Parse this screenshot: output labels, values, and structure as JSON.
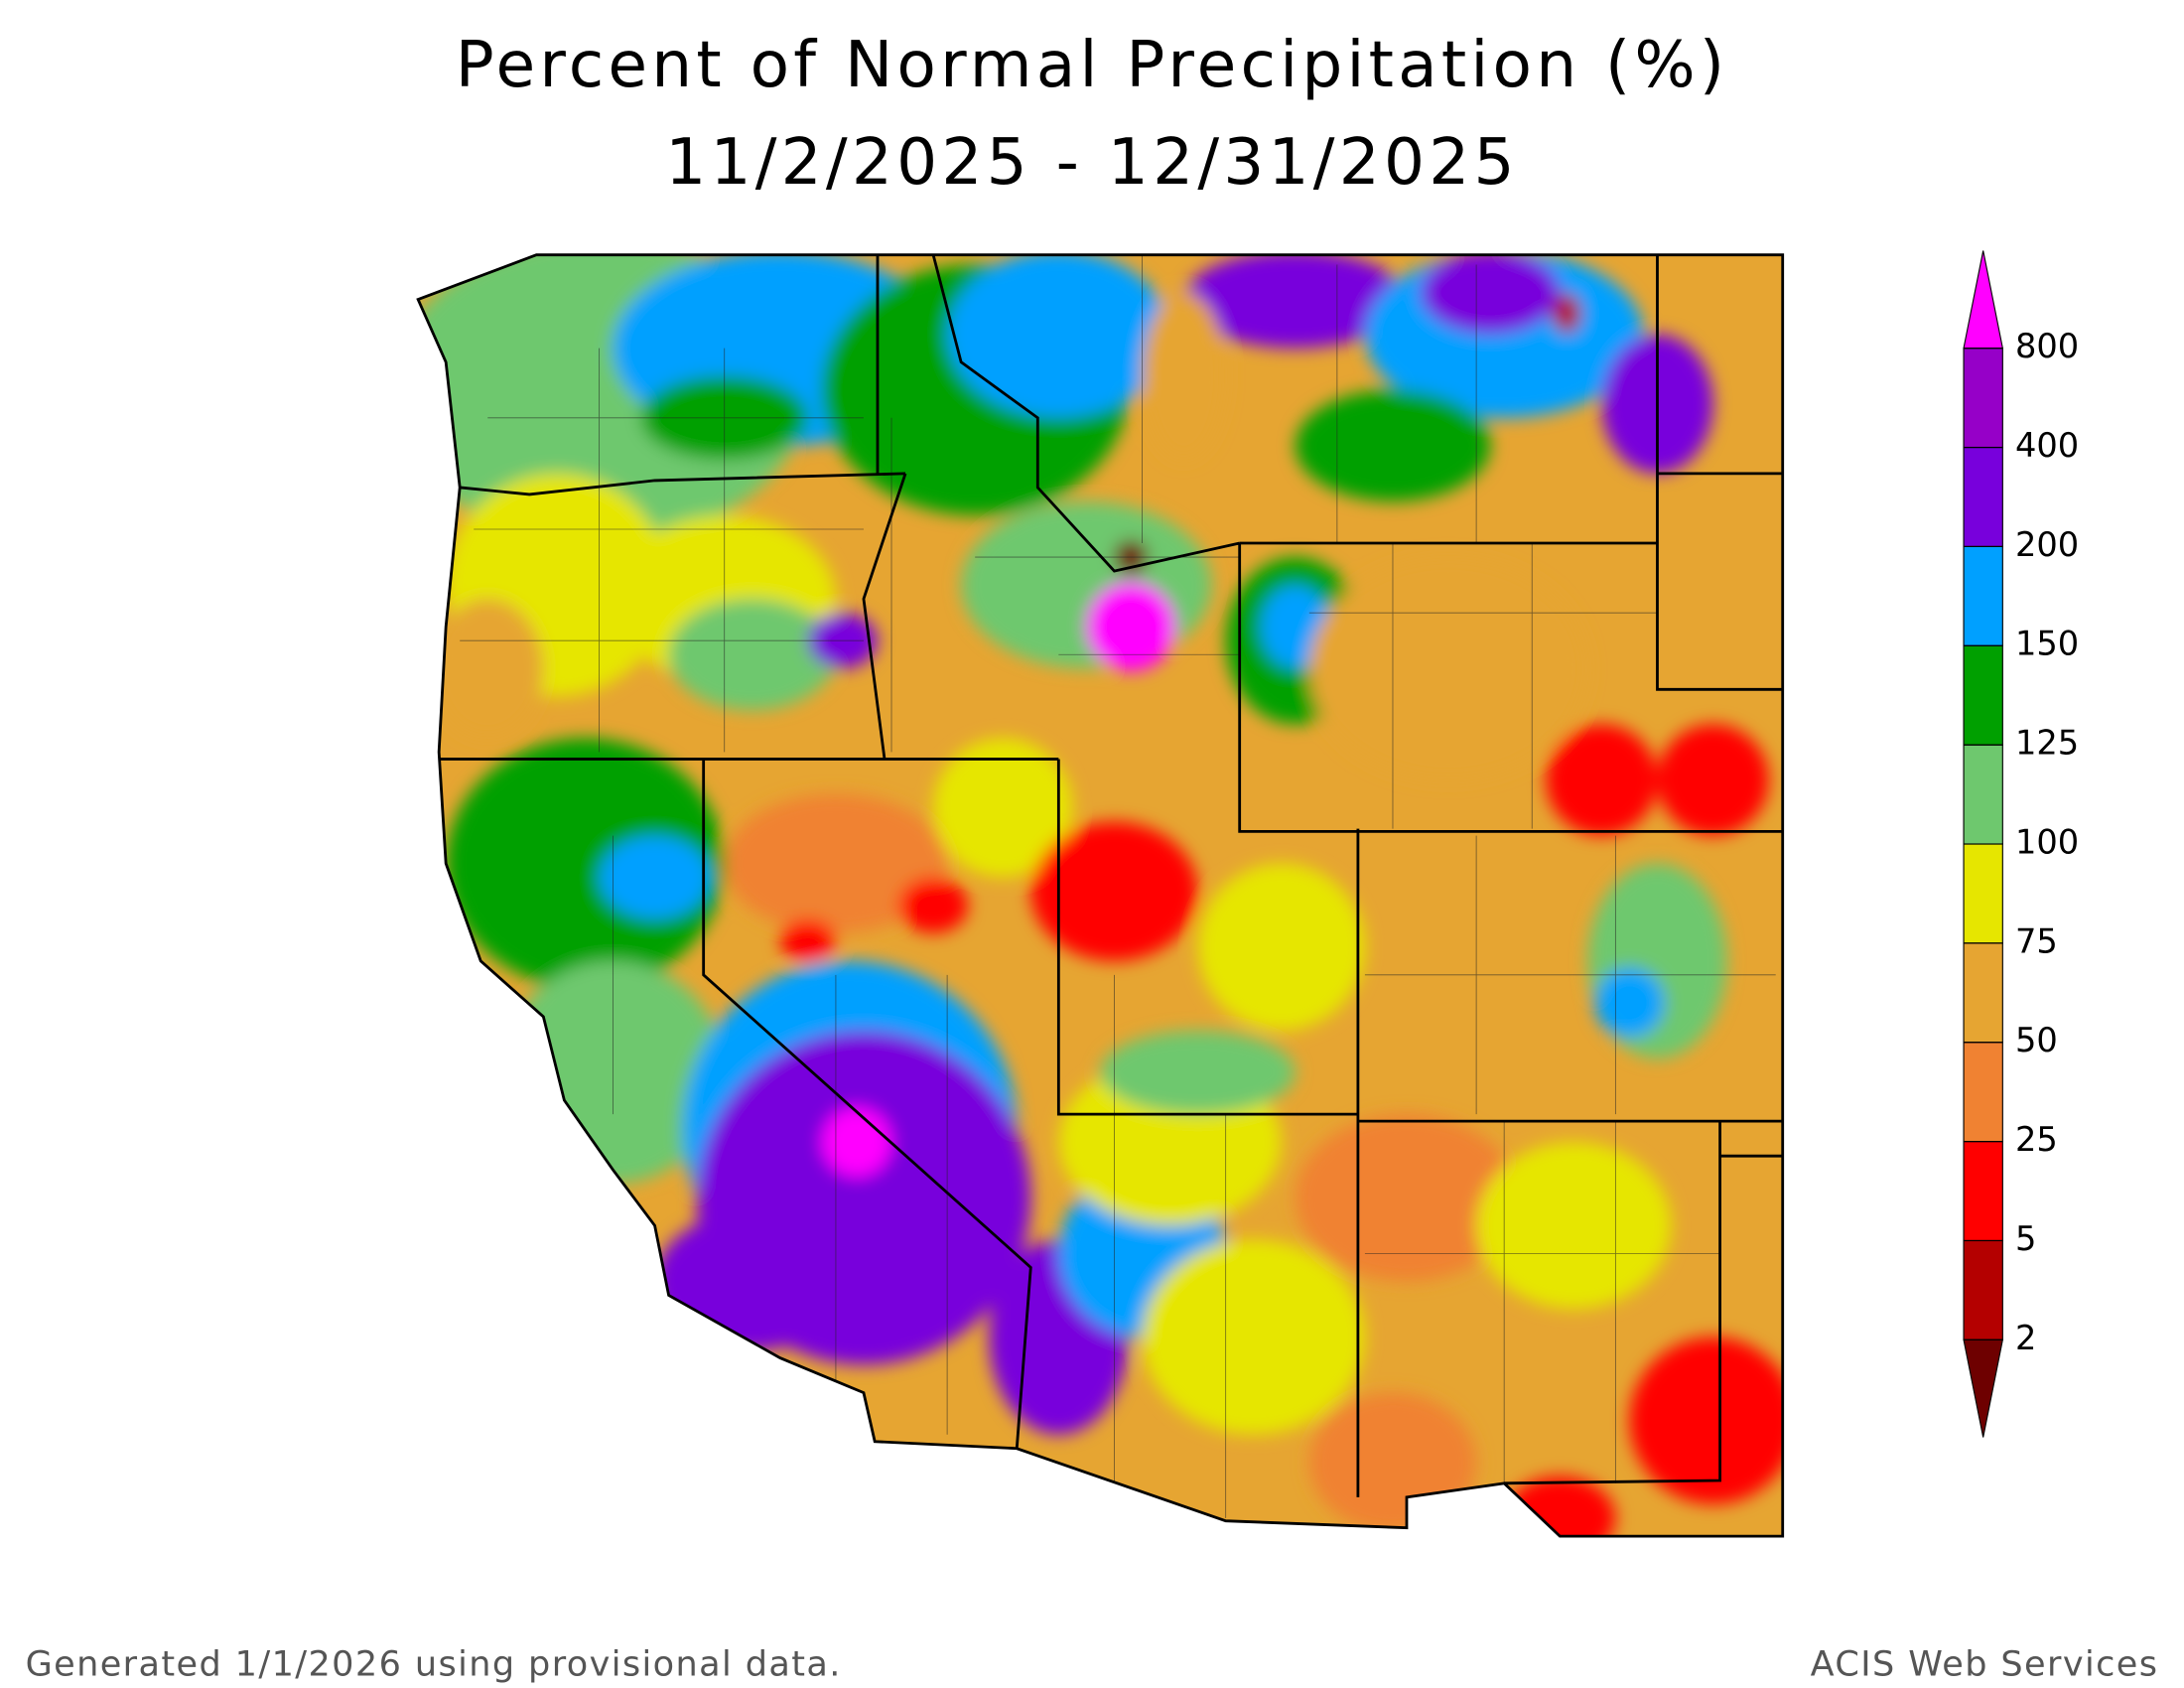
{
  "header": {
    "title": "Percent of Normal Precipitation (%)",
    "date_range": "11/2/2025 - 12/31/2025"
  },
  "legend": {
    "ticks": [
      2,
      5,
      25,
      50,
      75,
      100,
      125,
      150,
      200,
      400,
      800
    ],
    "colors": [
      "#6e0000",
      "#b40000",
      "#ff0000",
      "#f08232",
      "#e6a532",
      "#e6e600",
      "#6ec86e",
      "#00a000",
      "#00a0ff",
      "#7800dc",
      "#9600c8",
      "#ff00ff"
    ]
  },
  "footer": {
    "left": "Generated 1/1/2026 using provisional data.",
    "right": "ACIS Web Services"
  }
}
